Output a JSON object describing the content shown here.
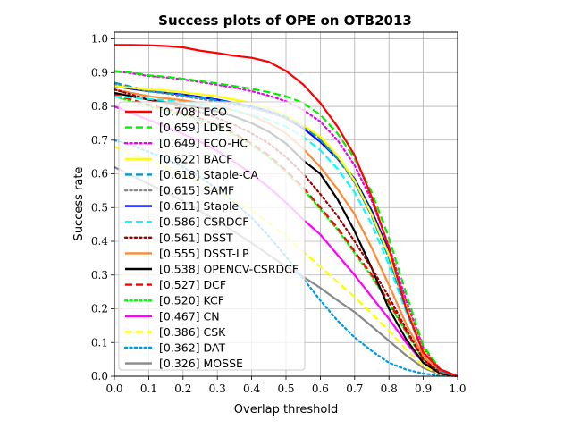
{
  "chart_data": {
    "type": "line",
    "title": "Success plots of OPE on OTB2013",
    "xlabel": "Overlap threshold",
    "ylabel": "Success rate",
    "xlim": [
      0,
      1
    ],
    "ylim": [
      0,
      1.02
    ],
    "xticks": [
      "0.0",
      "0.1",
      "0.2",
      "0.3",
      "0.4",
      "0.5",
      "0.6",
      "0.7",
      "0.8",
      "0.9",
      "1.0"
    ],
    "yticks": [
      "0.0",
      "0.1",
      "0.2",
      "0.3",
      "0.4",
      "0.5",
      "0.6",
      "0.7",
      "0.8",
      "0.9",
      "1.0"
    ],
    "grid": true,
    "legend_position": "lower-left",
    "x": [
      0.0,
      0.05,
      0.1,
      0.15,
      0.2,
      0.25,
      0.3,
      0.35,
      0.4,
      0.45,
      0.5,
      0.55,
      0.6,
      0.65,
      0.7,
      0.75,
      0.8,
      0.85,
      0.9,
      0.95,
      1.0
    ],
    "series": [
      {
        "name": "ECO",
        "label": "[0.708] ECO",
        "color": "#ff0000",
        "style": "solid",
        "values": [
          0.982,
          0.982,
          0.981,
          0.979,
          0.975,
          0.965,
          0.958,
          0.95,
          0.944,
          0.932,
          0.905,
          0.865,
          0.81,
          0.74,
          0.655,
          0.53,
          0.38,
          0.2,
          0.07,
          0.02,
          0.0
        ]
      },
      {
        "name": "LDES",
        "label": "[0.659] LDES",
        "color": "#00ee00",
        "style": "dashed",
        "values": [
          0.905,
          0.9,
          0.892,
          0.888,
          0.882,
          0.875,
          0.868,
          0.86,
          0.852,
          0.842,
          0.83,
          0.81,
          0.775,
          0.72,
          0.645,
          0.545,
          0.41,
          0.245,
          0.09,
          0.02,
          0.0
        ]
      },
      {
        "name": "ECO-HC",
        "label": "[0.649] ECO-HC",
        "color": "#ee00ee",
        "style": "dotted",
        "values": [
          0.905,
          0.898,
          0.89,
          0.886,
          0.88,
          0.872,
          0.864,
          0.855,
          0.845,
          0.832,
          0.815,
          0.79,
          0.755,
          0.7,
          0.625,
          0.52,
          0.385,
          0.225,
          0.085,
          0.02,
          0.0
        ]
      },
      {
        "name": "BACF",
        "label": "[0.622] BACF",
        "color": "#ffff00",
        "style": "solid",
        "values": [
          0.86,
          0.855,
          0.85,
          0.847,
          0.842,
          0.836,
          0.83,
          0.82,
          0.81,
          0.795,
          0.775,
          0.745,
          0.71,
          0.655,
          0.58,
          0.48,
          0.36,
          0.21,
          0.08,
          0.02,
          0.0
        ]
      },
      {
        "name": "Staple-CA",
        "label": "[0.618] Staple-CA",
        "color": "#0099cc",
        "style": "dashed",
        "values": [
          0.87,
          0.858,
          0.846,
          0.84,
          0.833,
          0.826,
          0.818,
          0.81,
          0.8,
          0.787,
          0.77,
          0.742,
          0.7,
          0.645,
          0.575,
          0.475,
          0.35,
          0.2,
          0.075,
          0.015,
          0.0
        ]
      },
      {
        "name": "SAMF",
        "label": "[0.615] SAMF",
        "color": "#888888",
        "style": "dotted",
        "values": [
          0.865,
          0.855,
          0.845,
          0.838,
          0.83,
          0.822,
          0.814,
          0.805,
          0.795,
          0.782,
          0.765,
          0.74,
          0.705,
          0.65,
          0.575,
          0.475,
          0.35,
          0.2,
          0.075,
          0.015,
          0.0
        ]
      },
      {
        "name": "Staple",
        "label": "[0.611] Staple",
        "color": "#0000ff",
        "style": "solid",
        "values": [
          0.86,
          0.852,
          0.845,
          0.84,
          0.835,
          0.828,
          0.82,
          0.81,
          0.8,
          0.785,
          0.765,
          0.735,
          0.695,
          0.645,
          0.585,
          0.49,
          0.37,
          0.21,
          0.075,
          0.02,
          0.0
        ]
      },
      {
        "name": "CSRDCF",
        "label": "[0.586] CSRDCF",
        "color": "#00ffff",
        "style": "dashed",
        "values": [
          0.83,
          0.826,
          0.822,
          0.818,
          0.812,
          0.806,
          0.798,
          0.788,
          0.775,
          0.76,
          0.74,
          0.71,
          0.67,
          0.615,
          0.545,
          0.45,
          0.33,
          0.19,
          0.07,
          0.015,
          0.0
        ]
      },
      {
        "name": "DSST",
        "label": "[0.561] DSST",
        "color": "#990000",
        "style": "dotted",
        "values": [
          0.85,
          0.835,
          0.82,
          0.81,
          0.798,
          0.783,
          0.765,
          0.745,
          0.72,
          0.69,
          0.65,
          0.6,
          0.54,
          0.475,
          0.4,
          0.32,
          0.235,
          0.14,
          0.05,
          0.01,
          0.0
        ]
      },
      {
        "name": "DSST-LP",
        "label": "[0.555] DSST-LP",
        "color": "#ff8833",
        "style": "solid",
        "values": [
          0.85,
          0.84,
          0.83,
          0.824,
          0.818,
          0.81,
          0.8,
          0.788,
          0.772,
          0.75,
          0.72,
          0.675,
          0.62,
          0.555,
          0.48,
          0.38,
          0.27,
          0.155,
          0.06,
          0.012,
          0.0
        ]
      },
      {
        "name": "OPENCV-CSRDCF",
        "label": "[0.538] OPENCV-CSRDCF",
        "color": "#000000",
        "style": "solid",
        "values": [
          0.84,
          0.83,
          0.82,
          0.812,
          0.805,
          0.796,
          0.785,
          0.77,
          0.75,
          0.725,
          0.69,
          0.64,
          0.6,
          0.525,
          0.43,
          0.32,
          0.2,
          0.11,
          0.04,
          0.008,
          0.0
        ]
      },
      {
        "name": "DCF",
        "label": "[0.527] DCF",
        "color": "#ff0000",
        "style": "dashed",
        "values": [
          0.835,
          0.82,
          0.805,
          0.793,
          0.78,
          0.765,
          0.745,
          0.72,
          0.69,
          0.655,
          0.61,
          0.56,
          0.5,
          0.44,
          0.37,
          0.3,
          0.22,
          0.135,
          0.05,
          0.01,
          0.0
        ]
      },
      {
        "name": "KCF",
        "label": "[0.520] KCF",
        "color": "#00ff00",
        "style": "dotted",
        "values": [
          0.83,
          0.815,
          0.8,
          0.788,
          0.775,
          0.76,
          0.74,
          0.715,
          0.685,
          0.65,
          0.605,
          0.555,
          0.495,
          0.435,
          0.365,
          0.295,
          0.215,
          0.13,
          0.05,
          0.01,
          0.0
        ]
      },
      {
        "name": "CN",
        "label": "[0.467] CN",
        "color": "#ff00ff",
        "style": "solid",
        "values": [
          0.8,
          0.78,
          0.76,
          0.74,
          0.718,
          0.695,
          0.668,
          0.635,
          0.6,
          0.56,
          0.515,
          0.465,
          0.42,
          0.36,
          0.3,
          0.235,
          0.17,
          0.1,
          0.04,
          0.008,
          0.0
        ]
      },
      {
        "name": "CSK",
        "label": "[0.386] CSK",
        "color": "#ffff00",
        "style": "dashed",
        "values": [
          0.68,
          0.66,
          0.64,
          0.62,
          0.598,
          0.575,
          0.548,
          0.52,
          0.49,
          0.455,
          0.415,
          0.37,
          0.325,
          0.28,
          0.235,
          0.185,
          0.135,
          0.08,
          0.03,
          0.006,
          0.0
        ]
      },
      {
        "name": "DAT",
        "label": "[0.362] DAT",
        "color": "#0099dd",
        "style": "dotted",
        "values": [
          0.7,
          0.685,
          0.665,
          0.645,
          0.62,
          0.59,
          0.555,
          0.515,
          0.47,
          0.415,
          0.355,
          0.29,
          0.225,
          0.165,
          0.115,
          0.075,
          0.04,
          0.02,
          0.008,
          0.002,
          0.0
        ]
      },
      {
        "name": "MOSSE",
        "label": "[0.326] MOSSE",
        "color": "#888888",
        "style": "solid",
        "values": [
          0.62,
          0.595,
          0.57,
          0.545,
          0.52,
          0.49,
          0.46,
          0.428,
          0.395,
          0.36,
          0.325,
          0.295,
          0.262,
          0.225,
          0.19,
          0.148,
          0.105,
          0.062,
          0.025,
          0.005,
          0.0
        ]
      }
    ]
  }
}
